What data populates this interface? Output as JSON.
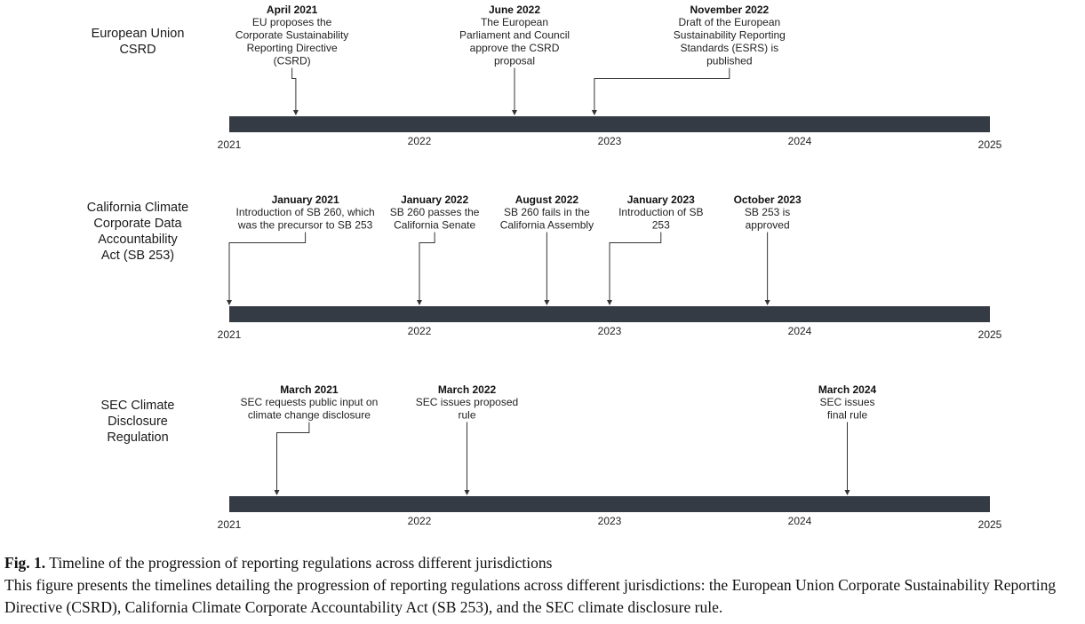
{
  "timelines": [
    {
      "title_lines": [
        "European Union",
        "CSRD"
      ],
      "ticks": [
        "2021",
        "2022",
        "2023",
        "2024",
        "2025"
      ],
      "events": [
        {
          "date": "April 2021",
          "year_pos": 2021.35,
          "text_lines": [
            "EU proposes the",
            "Corporate Sustainability",
            "Reporting Directive",
            "(CSRD)"
          ],
          "label_center": 2021.33
        },
        {
          "date": "June 2022",
          "year_pos": 2022.5,
          "text_lines": [
            "The European",
            "Parliament and Council",
            "approve the CSRD",
            "proposal"
          ],
          "label_center": 2022.5
        },
        {
          "date": "November 2022",
          "year_pos": 2022.92,
          "text_lines": [
            "Draft of the European",
            "Sustainability Reporting",
            "Standards (ESRS) is",
            "published"
          ],
          "label_center": 2023.63
        }
      ]
    },
    {
      "title_lines": [
        "California Climate",
        "Corporate Data",
        "Accountability",
        "Act (SB 253)"
      ],
      "ticks": [
        "2021",
        "2022",
        "2023",
        "2024",
        "2025"
      ],
      "events": [
        {
          "date": "January 2021",
          "year_pos": 2021.0,
          "text_lines": [
            "Introduction of SB 260, which",
            "was the precursor to SB 253"
          ],
          "label_center": 2021.4
        },
        {
          "date": "January 2022",
          "year_pos": 2022.0,
          "text_lines": [
            "SB 260 passes the",
            "California Senate"
          ],
          "label_center": 2022.08
        },
        {
          "date": "August 2022",
          "year_pos": 2022.67,
          "text_lines": [
            "SB 260 fails in the",
            "California Assembly"
          ],
          "label_center": 2022.67
        },
        {
          "date": "January 2023",
          "year_pos": 2023.0,
          "text_lines": [
            "Introduction of SB",
            "253"
          ],
          "label_center": 2023.27
        },
        {
          "date": "October 2023",
          "year_pos": 2023.83,
          "text_lines": [
            "SB 253 is",
            "approved"
          ],
          "label_center": 2023.83
        }
      ]
    },
    {
      "title_lines": [
        "SEC Climate",
        "Disclosure",
        "Regulation"
      ],
      "ticks": [
        "2021",
        "2022",
        "2023",
        "2024",
        "2025"
      ],
      "events": [
        {
          "date": "March 2021",
          "year_pos": 2021.25,
          "text_lines": [
            "SEC requests public input on",
            "climate change disclosure"
          ],
          "label_center": 2021.42
        },
        {
          "date": "March 2022",
          "year_pos": 2022.25,
          "text_lines": [
            "SEC issues proposed",
            "rule"
          ],
          "label_center": 2022.25
        },
        {
          "date": "March 2024",
          "year_pos": 2024.25,
          "text_lines": [
            "SEC issues",
            "final rule"
          ],
          "label_center": 2024.25
        }
      ]
    }
  ],
  "caption": {
    "label": "Fig. 1.",
    "title": "Timeline of the progression of reporting regulations across different jurisdictions",
    "body": "This figure presents the timelines detailing the progression of reporting regulations across different jurisdictions: the European Union Corporate Sustainability Reporting Directive (CSRD), California Climate Corporate Accountability Act (SB 253), and the SEC climate disclosure rule."
  }
}
